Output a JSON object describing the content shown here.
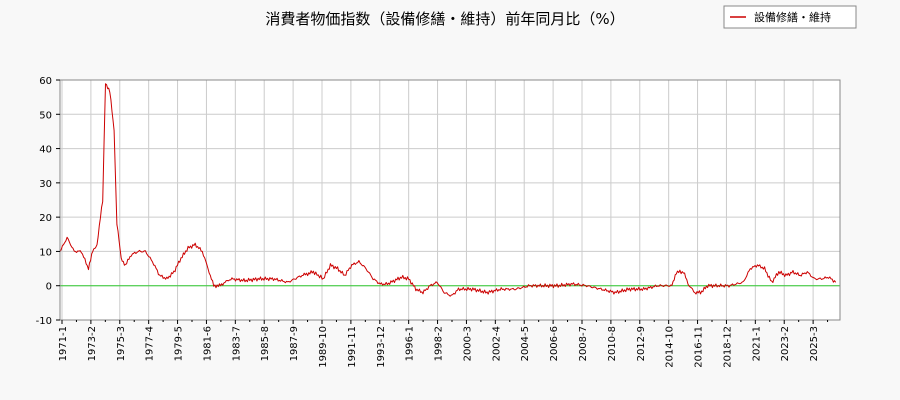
{
  "chart_data": {
    "type": "line",
    "title": "消費者物価指数（設備修繕・維持）前年同月比（%）",
    "legend": {
      "position": "top-right",
      "label": "設備修繕・維持"
    },
    "ylim": [
      -10,
      60
    ],
    "yticks": [
      -10,
      0,
      10,
      20,
      30,
      40,
      50,
      60
    ],
    "x_tick_labels": [
      "1971-1",
      "1973-2",
      "1975-3",
      "1977-4",
      "1979-5",
      "1981-6",
      "1983-7",
      "1985-8",
      "1987-9",
      "1989-10",
      "1991-11",
      "1993-12",
      "1996-1",
      "1998-2",
      "2000-3",
      "2002-4",
      "2004-5",
      "2006-6",
      "2008-7",
      "2010-8",
      "2012-9",
      "2014-10",
      "2016-11",
      "2018-12",
      "2021-1",
      "2023-2",
      "2025-3"
    ],
    "grid": true,
    "zero_line": true,
    "colors": {
      "series": "#cc0000",
      "zero_line": "#33cc33",
      "grid": "#cccccc",
      "background": "#f8f8f8",
      "plot_background": "#ffffff"
    },
    "series": [
      {
        "name": "設備修繕・維持",
        "x": [
          1971.0,
          1971.5,
          1972.0,
          1972.5,
          1973.0,
          1973.3,
          1973.6,
          1974.0,
          1974.2,
          1974.5,
          1974.8,
          1975.0,
          1975.3,
          1975.6,
          1976.0,
          1976.5,
          1977.0,
          1977.5,
          1978.0,
          1978.5,
          1979.0,
          1979.5,
          1980.0,
          1980.5,
          1981.0,
          1981.4,
          1981.8,
          1982.2,
          1983.0,
          1984.0,
          1985.0,
          1986.0,
          1987.0,
          1988.0,
          1988.8,
          1989.5,
          1990.0,
          1990.5,
          1991.0,
          1991.5,
          1992.0,
          1992.5,
          1993.0,
          1993.5,
          1994.0,
          1995.0,
          1995.5,
          1996.0,
          1996.5,
          1997.0,
          1997.5,
          1998.0,
          1998.5,
          1999.0,
          1999.5,
          2000.0,
          2001.0,
          2002.0,
          2003.0,
          2004.0,
          2005.0,
          2006.0,
          2007.0,
          2008.0,
          2009.0,
          2010.0,
          2011.0,
          2012.0,
          2013.0,
          2014.0,
          2014.3,
          2014.8,
          2015.2,
          2015.6,
          2016.0,
          2016.5,
          2017.0,
          2018.0,
          2019.0,
          2019.5,
          2020.0,
          2020.5,
          2021.0,
          2021.5,
          2022.0,
          2022.5,
          2023.0,
          2023.5,
          2024.0,
          2024.5,
          2025.0,
          2025.5
        ],
        "values": [
          10,
          14,
          10,
          10,
          5,
          10,
          12,
          25,
          59,
          57,
          45,
          18,
          8,
          6,
          9,
          10,
          10,
          7,
          3,
          2,
          4,
          8,
          11,
          12,
          10,
          5,
          0,
          0,
          2,
          1.5,
          2,
          2,
          1,
          3,
          4,
          2,
          6,
          5,
          3,
          6,
          7,
          5,
          2,
          0.5,
          0.5,
          2.5,
          2,
          -1,
          -2,
          0,
          1,
          -2,
          -3,
          -1,
          -1,
          -1,
          -2,
          -1,
          -1,
          0,
          0,
          0,
          0.5,
          0,
          -1,
          -2,
          -1,
          -1,
          0,
          0,
          4,
          4,
          0,
          -2,
          -2,
          0,
          0,
          0,
          1,
          5,
          6,
          5,
          1,
          4,
          3,
          4,
          3,
          4,
          2,
          2,
          2.5,
          1
        ]
      }
    ]
  }
}
